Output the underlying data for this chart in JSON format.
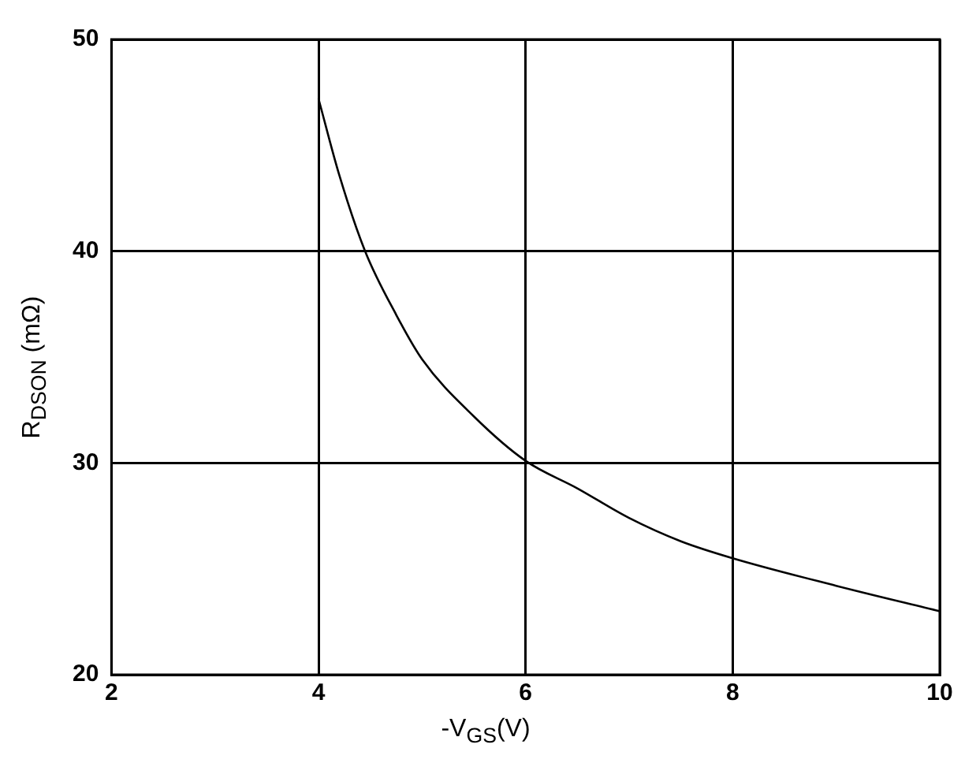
{
  "chart_data": {
    "type": "line",
    "xlabel": "-V$_{GS}$(V)",
    "ylabel": "R$_{DSON}$ (mΩ)",
    "xlim": [
      2,
      10
    ],
    "xticks": [
      2,
      4,
      6,
      8,
      10
    ],
    "ylim": [
      20,
      50
    ],
    "yticks": [
      20,
      30,
      40,
      50
    ],
    "grid": true,
    "marker": "none",
    "line_style": "solid",
    "series": [
      {
        "color": "#000000",
        "x": [
          4,
          4.2,
          4.45,
          4.75,
          5,
          5.5,
          6,
          6.5,
          7,
          7.5,
          8,
          9,
          10
        ],
        "values": [
          47.2,
          43.6,
          40,
          37,
          34.9,
          32.2,
          30.1,
          28.8,
          27.4,
          26.3,
          25.5,
          24.2,
          23
        ]
      }
    ]
  }
}
